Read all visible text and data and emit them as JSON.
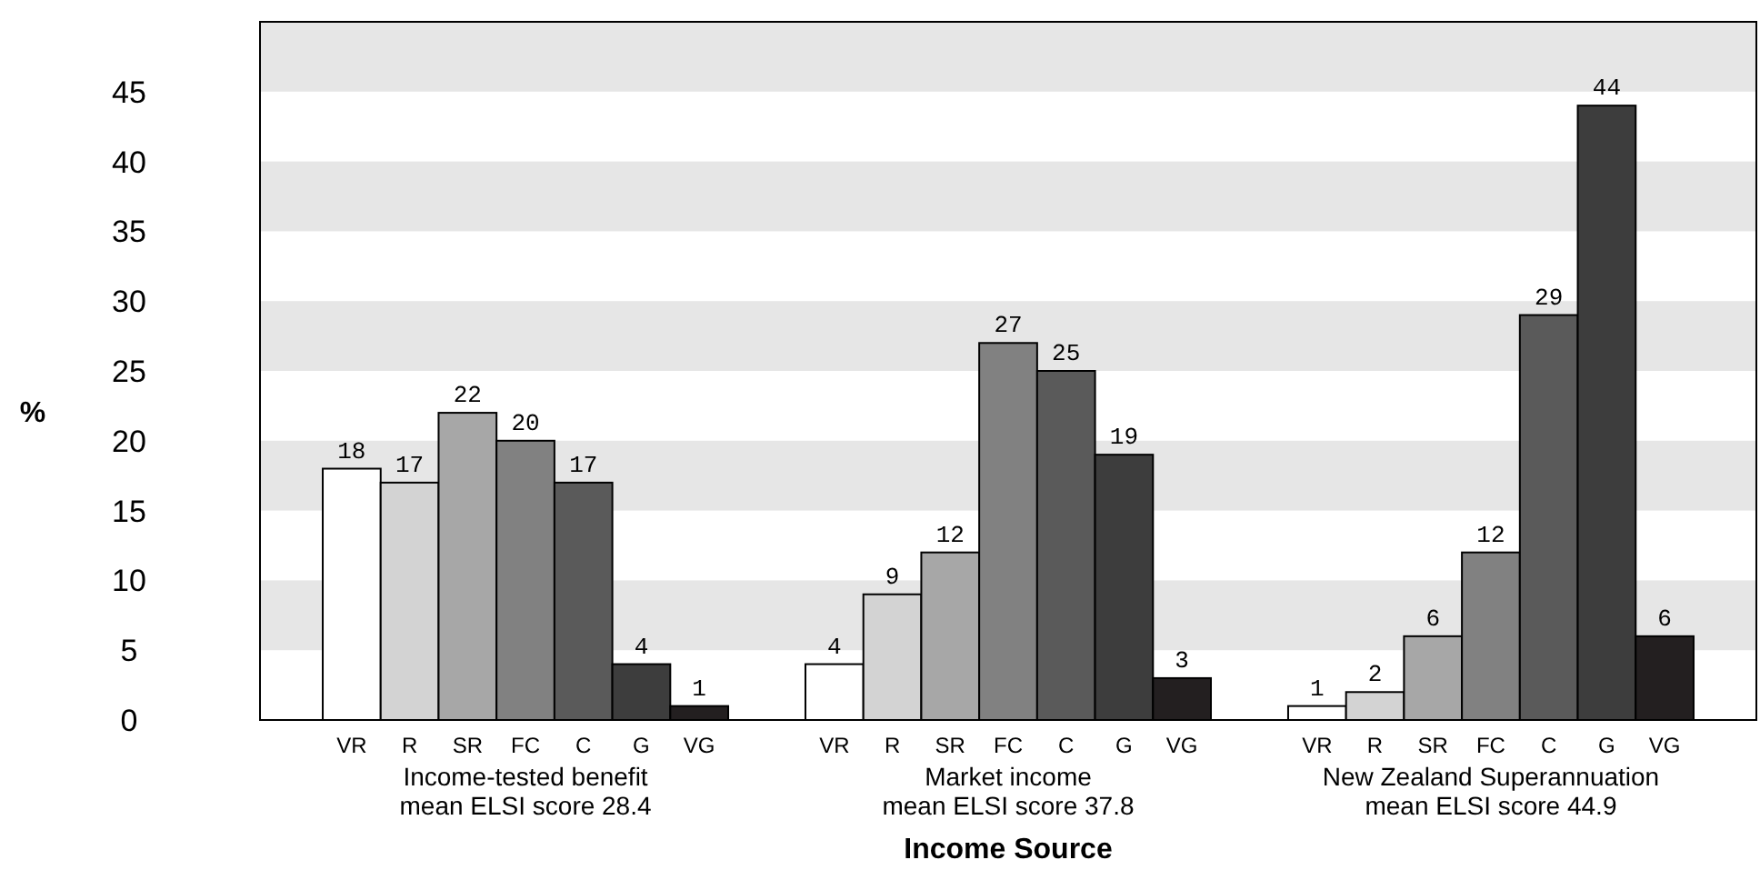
{
  "chart_data": {
    "type": "bar",
    "ylabel": "%",
    "xlabel": "Income Source",
    "categories": [
      "Income-tested benefit\nmean ELSI score 28.4",
      "Market income\nmean ELSI score 37.8",
      "New Zealand Superannuation\nmean ELSI score 44.9"
    ],
    "series": [
      {
        "name": "VR",
        "color": "#ffffff",
        "values": [
          18,
          4,
          1
        ]
      },
      {
        "name": "R",
        "color": "#d3d3d3",
        "values": [
          17,
          9,
          2
        ]
      },
      {
        "name": "SR",
        "color": "#a7a7a7",
        "values": [
          22,
          12,
          6
        ]
      },
      {
        "name": "FC",
        "color": "#818181",
        "values": [
          20,
          27,
          12
        ]
      },
      {
        "name": "C",
        "color": "#5a5a5a",
        "values": [
          17,
          25,
          29
        ]
      },
      {
        "name": "G",
        "color": "#3d3d3d",
        "values": [
          4,
          19,
          44
        ]
      },
      {
        "name": "VG",
        "color": "#231f20",
        "values": [
          1,
          3,
          6
        ]
      }
    ],
    "ylim": [
      0,
      50
    ],
    "yticks": [
      0,
      5,
      10,
      15,
      20,
      25,
      30,
      35,
      40,
      45
    ],
    "data_labels": true,
    "bands": [
      {
        "axis": "y",
        "from": 5,
        "to": 10,
        "color": "#e6e6e6"
      },
      {
        "axis": "y",
        "from": 15,
        "to": 20,
        "color": "#e6e6e6"
      },
      {
        "axis": "y",
        "from": 25,
        "to": 30,
        "color": "#e6e6e6"
      },
      {
        "axis": "y",
        "from": 35,
        "to": 40,
        "color": "#e6e6e6"
      },
      {
        "axis": "y",
        "from": 45,
        "to": 50,
        "color": "#e6e6e6"
      }
    ]
  }
}
